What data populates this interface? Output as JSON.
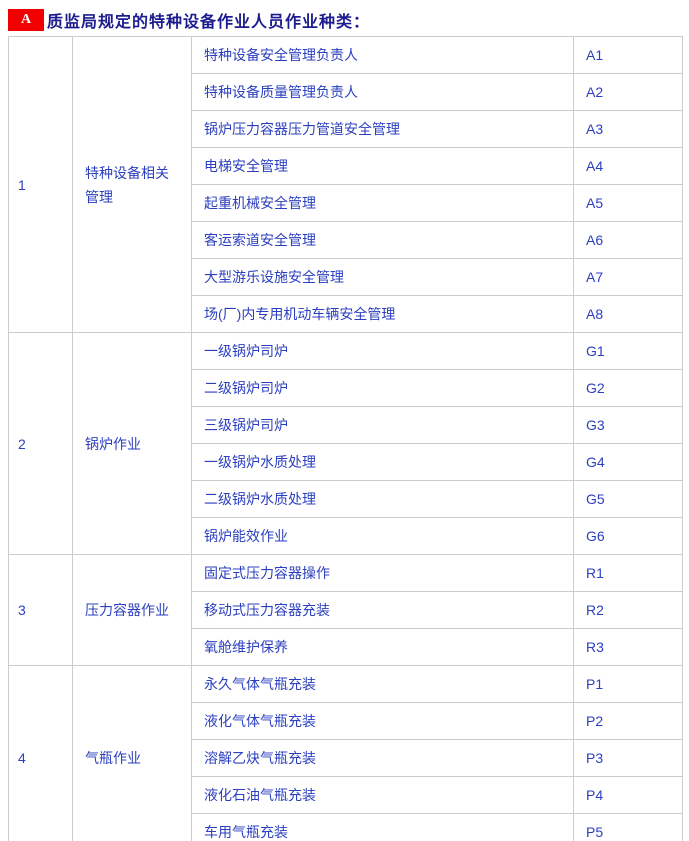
{
  "page": {
    "badge": "A",
    "title": "质监局规定的特种设备作业人员作业种类："
  },
  "colors": {
    "badge_bg": "#f20000",
    "badge_text": "#ffffff",
    "title_text": "#1c1c8e",
    "cell_text": "#2b3fbf",
    "border": "#cccccc"
  },
  "table": {
    "groups": [
      {
        "no": "1",
        "category": "特种设备相关管理",
        "items": [
          {
            "name": "特种设备安全管理负责人",
            "code": "A1"
          },
          {
            "name": "特种设备质量管理负责人",
            "code": "A2"
          },
          {
            "name": "锅炉压力容器压力管道安全管理",
            "code": "A3"
          },
          {
            "name": "电梯安全管理",
            "code": "A4"
          },
          {
            "name": "起重机械安全管理",
            "code": "A5"
          },
          {
            "name": "客运索道安全管理",
            "code": "A6"
          },
          {
            "name": "大型游乐设施安全管理",
            "code": "A7"
          },
          {
            "name": "场(厂)内专用机动车辆安全管理",
            "code": "A8"
          }
        ]
      },
      {
        "no": "2",
        "category": "锅炉作业",
        "items": [
          {
            "name": "一级锅炉司炉",
            "code": "G1"
          },
          {
            "name": "二级锅炉司炉",
            "code": "G2"
          },
          {
            "name": "三级锅炉司炉",
            "code": "G3"
          },
          {
            "name": "一级锅炉水质处理",
            "code": "G4"
          },
          {
            "name": "二级锅炉水质处理",
            "code": "G5"
          },
          {
            "name": "锅炉能效作业",
            "code": "G6"
          }
        ]
      },
      {
        "no": "3",
        "category": "压力容器作业",
        "items": [
          {
            "name": "固定式压力容器操作",
            "code": "R1"
          },
          {
            "name": "移动式压力容器充装",
            "code": "R2"
          },
          {
            "name": "氧舱维护保养",
            "code": "R3"
          }
        ]
      },
      {
        "no": "4",
        "category": "气瓶作业",
        "items": [
          {
            "name": "永久气体气瓶充装",
            "code": "P1"
          },
          {
            "name": "液化气体气瓶充装",
            "code": "P2"
          },
          {
            "name": "溶解乙炔气瓶充装",
            "code": "P3"
          },
          {
            "name": "液化石油气瓶充装",
            "code": "P4"
          },
          {
            "name": "车用气瓶充装",
            "code": "P5"
          }
        ]
      }
    ]
  }
}
